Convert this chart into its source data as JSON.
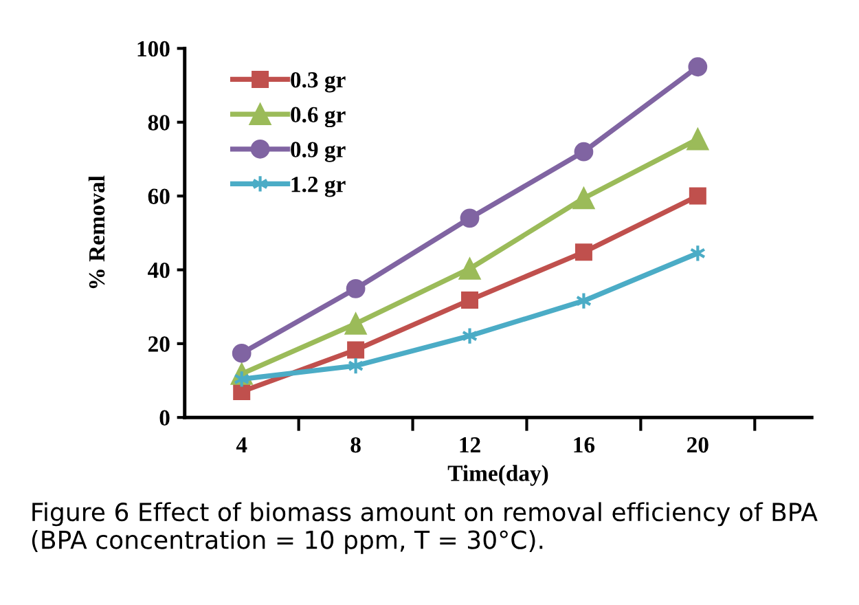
{
  "chart_data": {
    "type": "line",
    "xlabel": "Time(day)",
    "ylabel": "% Removal",
    "categories": [
      "4",
      "8",
      "12",
      "16",
      "20"
    ],
    "ylim": [
      0,
      100
    ],
    "yticks": [
      0,
      20,
      40,
      60,
      80,
      100
    ],
    "grid": false,
    "legend": "top left",
    "line_style": "solid",
    "series": [
      {
        "name": "0.3 gr",
        "color": "#c0504d",
        "marker": "square",
        "values": [
          7,
          18.3,
          31.8,
          44.8,
          60
        ]
      },
      {
        "name": "0.6 gr",
        "color": "#9bbb59",
        "marker": "triangle",
        "values": [
          11.8,
          25.4,
          40.3,
          59.4,
          75.4
        ]
      },
      {
        "name": "0.9 gr",
        "color": "#8064a2",
        "marker": "circle",
        "values": [
          17.4,
          34.9,
          54,
          72,
          95
        ]
      },
      {
        "name": "1.2 gr",
        "color": "#4bacc6",
        "marker": "cross",
        "values": [
          10.4,
          14,
          22.1,
          31.6,
          44.5
        ]
      }
    ],
    "annotations": [
      "Figure 6 Effect of biomass amount on removal efficiency of BPA (BPA concentration = 10 ppm, T = 30°C)."
    ]
  }
}
